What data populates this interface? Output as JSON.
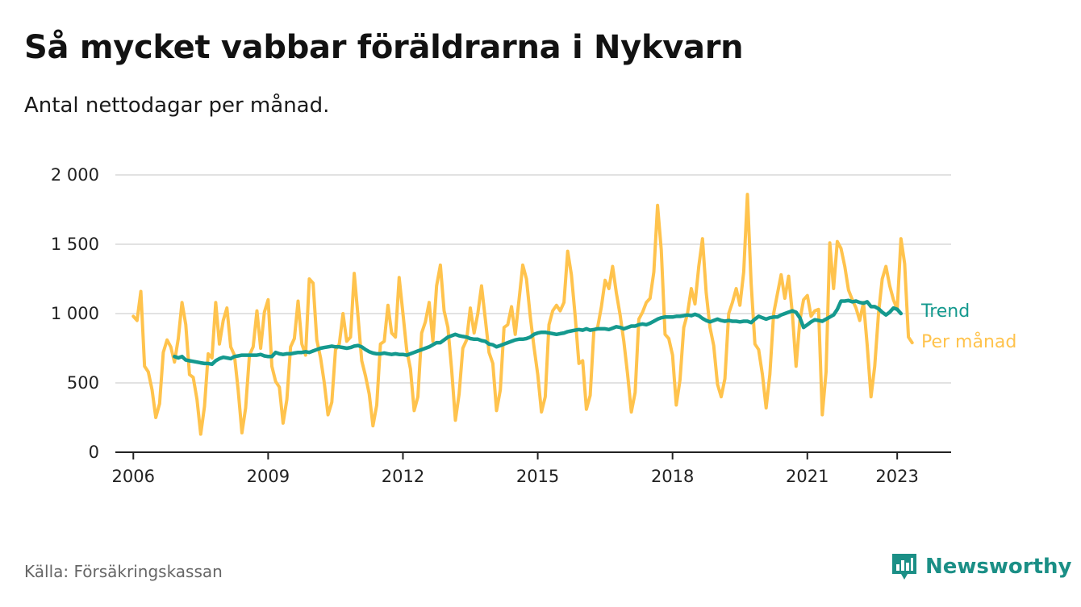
{
  "header": {
    "title": "Så mycket vabbar föräldrarna i Nykvarn",
    "subtitle": "Antal nettodagar per månad."
  },
  "footer": {
    "source": "Källa: Försäkringskassan",
    "brand": "Newsworthy",
    "brand_icon": "newsworthy-logo-icon"
  },
  "colors": {
    "trend": "#14998e",
    "monthly": "#ffc34d",
    "grid": "#d9d9d9",
    "axis": "#222222",
    "brand": "#1b8f86"
  },
  "chart_data": {
    "type": "line",
    "title": "Så mycket vabbar föräldrarna i Nykvarn",
    "subtitle": "Antal nettodagar per månad.",
    "xlabel": "",
    "ylabel": "",
    "xlim": [
      2005.6,
      2024.2
    ],
    "ylim": [
      0,
      2000
    ],
    "grid": true,
    "legend": "inline labels at line ends",
    "x_ticks": [
      2006,
      2009,
      2012,
      2015,
      2018,
      2021,
      2023
    ],
    "x_tick_labels": [
      "2006",
      "2009",
      "2012",
      "2015",
      "2018",
      "2021",
      "2023"
    ],
    "y_ticks": [
      0,
      500,
      1000,
      1500,
      2000
    ],
    "y_tick_labels": [
      "0",
      "500",
      "1 000",
      "1 500",
      "2 000"
    ],
    "series": [
      {
        "name": "Per månad",
        "color": "#ffc34d",
        "start": "2006-01",
        "step": "month",
        "values": [
          980,
          950,
          1160,
          620,
          580,
          450,
          250,
          350,
          720,
          810,
          760,
          650,
          820,
          1080,
          920,
          560,
          540,
          380,
          130,
          330,
          710,
          680,
          1080,
          780,
          950,
          1040,
          760,
          700,
          450,
          140,
          320,
          700,
          760,
          1020,
          750,
          1010,
          1100,
          620,
          510,
          470,
          210,
          380,
          760,
          820,
          1090,
          780,
          700,
          1250,
          1220,
          810,
          680,
          500,
          270,
          360,
          740,
          780,
          1000,
          800,
          830,
          1290,
          980,
          660,
          550,
          420,
          190,
          340,
          780,
          800,
          1060,
          860,
          830,
          1260,
          1000,
          740,
          600,
          300,
          400,
          860,
          940,
          1080,
          800,
          1200,
          1350,
          1020,
          900,
          600,
          230,
          420,
          750,
          810,
          1040,
          860,
          1000,
          1200,
          960,
          720,
          640,
          300,
          450,
          900,
          920,
          1050,
          850,
          1100,
          1350,
          1250,
          980,
          760,
          560,
          290,
          400,
          920,
          1020,
          1060,
          1020,
          1080,
          1450,
          1280,
          980,
          640,
          660,
          310,
          410,
          880,
          900,
          1050,
          1240,
          1180,
          1340,
          1150,
          990,
          800,
          560,
          290,
          430,
          960,
          1010,
          1080,
          1110,
          1300,
          1780,
          1460,
          850,
          820,
          700,
          340,
          520,
          900,
          1000,
          1180,
          1070,
          1340,
          1540,
          1150,
          900,
          770,
          490,
          400,
          530,
          1000,
          1080,
          1180,
          1060,
          1300,
          1860,
          1220,
          780,
          740,
          560,
          320,
          560,
          1000,
          1140,
          1280,
          1110,
          1270,
          1000,
          620,
          950,
          1100,
          1130,
          980,
          1020,
          1030,
          270,
          580,
          1510,
          1180,
          1520,
          1470,
          1340,
          1170,
          1100,
          1040,
          950,
          1080,
          770,
          400,
          620,
          1000,
          1250,
          1340,
          1200,
          1100,
          1030,
          1540,
          1360,
          830,
          790
        ]
      },
      {
        "name": "Trend",
        "color": "#14998e",
        "start": "2006-12",
        "step": "month",
        "values": [
          690,
          680,
          690,
          665,
          660,
          655,
          650,
          645,
          640,
          640,
          635,
          660,
          675,
          685,
          680,
          675,
          690,
          695,
          700,
          700,
          700,
          700,
          700,
          705,
          695,
          690,
          690,
          720,
          710,
          705,
          710,
          710,
          715,
          720,
          720,
          725,
          720,
          730,
          740,
          750,
          755,
          760,
          765,
          760,
          760,
          755,
          750,
          755,
          765,
          770,
          760,
          740,
          725,
          715,
          710,
          710,
          715,
          710,
          705,
          710,
          705,
          705,
          700,
          710,
          720,
          730,
          740,
          750,
          760,
          775,
          790,
          790,
          810,
          830,
          840,
          850,
          840,
          835,
          830,
          820,
          815,
          815,
          805,
          800,
          780,
          775,
          760,
          770,
          780,
          790,
          800,
          810,
          815,
          815,
          820,
          830,
          850,
          860,
          865,
          865,
          860,
          855,
          850,
          855,
          860,
          870,
          875,
          880,
          885,
          880,
          890,
          880,
          885,
          890,
          890,
          890,
          885,
          895,
          905,
          900,
          890,
          900,
          910,
          910,
          920,
          925,
          920,
          930,
          945,
          960,
          970,
          975,
          975,
          975,
          980,
          980,
          985,
          990,
          985,
          995,
          985,
          965,
          950,
          940,
          950,
          960,
          950,
          945,
          950,
          945,
          945,
          940,
          945,
          945,
          935,
          960,
          980,
          970,
          960,
          970,
          975,
          975,
          990,
          1000,
          1010,
          1020,
          1010,
          970,
          900,
          920,
          940,
          955,
          950,
          945,
          960,
          975,
          990,
          1030,
          1090,
          1090,
          1095,
          1085,
          1090,
          1080,
          1075,
          1085,
          1050,
          1050,
          1035,
          1010,
          990,
          1010,
          1040,
          1030,
          1000
        ]
      }
    ]
  }
}
